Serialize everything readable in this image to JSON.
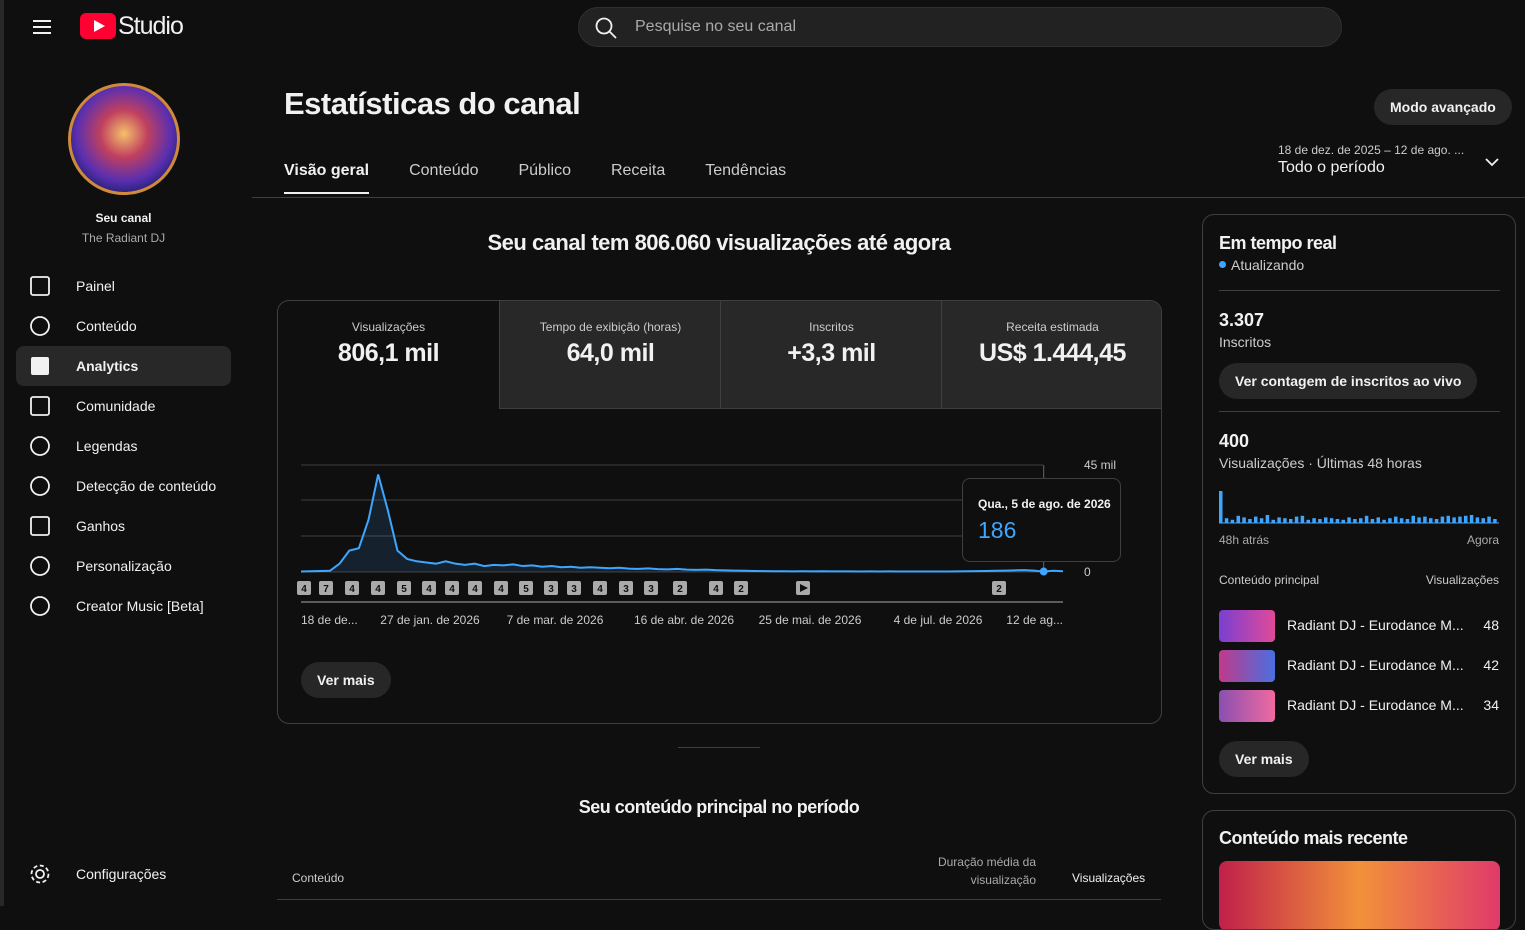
{
  "header": {
    "brand": "Studio",
    "search_placeholder": "Pesquise no seu canal"
  },
  "sidebar": {
    "channel_label": "Seu canal",
    "channel_name": "The Radiant DJ",
    "nav": [
      "Painel",
      "Conteúdo",
      "Analytics",
      "Comunidade",
      "Legendas",
      "Detecção de conteúdo",
      "Ganhos",
      "Personalização",
      "Creator Music [Beta]"
    ],
    "active_index": 2,
    "settings": "Configurações"
  },
  "main": {
    "title": "Estatísticas do canal",
    "advanced_button": "Modo avançado",
    "tabs": [
      "Visão geral",
      "Conteúdo",
      "Público",
      "Receita",
      "Tendências"
    ],
    "active_tab": 0,
    "date_range": "18 de dez. de 2025 – 12 de ago. ...",
    "period": "Todo o período",
    "headline": "Seu canal tem 806.060 visualizações até agora",
    "metrics": [
      {
        "label": "Visualizações",
        "value": "806,1 mil"
      },
      {
        "label": "Tempo de exibição (horas)",
        "value": "64,0 mil"
      },
      {
        "label": "Inscritos",
        "value": "+3,3 mil"
      },
      {
        "label": "Receita estimada",
        "value": "US$ 1.444,45"
      }
    ],
    "active_metric": 0,
    "chart": {
      "type": "line",
      "color": "#3ea6ff",
      "ylim": [
        0,
        45000
      ],
      "yticks": [
        0,
        {
          "value": 45000,
          "label": "45 mil"
        }
      ],
      "values": [
        200,
        300,
        400,
        500,
        3500,
        9000,
        10000,
        22000,
        41000,
        26000,
        9000,
        5500,
        4500,
        4000,
        3500,
        4500,
        3500,
        3000,
        3500,
        2500,
        3000,
        2800,
        3200,
        2500,
        2800,
        2200,
        2500,
        2000,
        2200,
        1800,
        2000,
        1800,
        1600,
        1800,
        1400,
        1300,
        1500,
        1200,
        1100,
        1300,
        1000,
        900,
        1000,
        800,
        700,
        600,
        500,
        400,
        350,
        300,
        300,
        280,
        300,
        260,
        300,
        250,
        280,
        250,
        230,
        250,
        220,
        240,
        200,
        220,
        200,
        210,
        200,
        220,
        250,
        300,
        350,
        400,
        500,
        600,
        700,
        800,
        600,
        186,
        500,
        300
      ],
      "xlabels": [
        "18 de de...",
        "27 de jan. de 2026",
        "7 de mar. de 2026",
        "16 de abr. de 2026",
        "25 de mai. de 2026",
        "4 de jul. de 2026",
        "12 de ag..."
      ],
      "markers": [
        "4",
        "7",
        "4",
        "4",
        "5",
        "4",
        "4",
        "4",
        "4",
        "5",
        "3",
        "3",
        "4",
        "3",
        "3",
        "2",
        "4",
        "2",
        "2"
      ],
      "tooltip": {
        "date": "Qua., 5 de ago. de 2026",
        "index": 77
      }
    },
    "more_button": "Ver mais",
    "top_content_title": "Seu conteúdo principal no período",
    "table_headers": [
      "Conteúdo",
      "Duração média da visualização",
      "Visualizações"
    ]
  },
  "realtime": {
    "title": "Em tempo real",
    "status": "Atualizando",
    "subscribers": "3.307",
    "subscribers_label": "Inscritos",
    "live_button": "Ver contagem de inscritos ao vivo",
    "views": "400",
    "views_label": "Visualizações · Últimas 48 horas",
    "bars": [
      40,
      6,
      4,
      9,
      7,
      5,
      8,
      6,
      10,
      4,
      7,
      6,
      5,
      8,
      9,
      4,
      6,
      5,
      7,
      6,
      5,
      4,
      7,
      5,
      6,
      9,
      5,
      7,
      4,
      6,
      8,
      6,
      5,
      9,
      7,
      8,
      6,
      5,
      8,
      9,
      7,
      8,
      9,
      10,
      7,
      6,
      8,
      5
    ],
    "axis_start": "48h atrás",
    "axis_end": "Agora",
    "content_header": "Conteúdo principal",
    "views_header": "Visualizações",
    "top": [
      {
        "title": "Radiant DJ - Eurodance M...",
        "views": 48
      },
      {
        "title": "Radiant DJ - Eurodance M...",
        "views": 42
      },
      {
        "title": "Radiant DJ - Eurodance M...",
        "views": 34
      }
    ],
    "more_button": "Ver mais"
  },
  "recent": {
    "title": "Conteúdo mais recente"
  }
}
